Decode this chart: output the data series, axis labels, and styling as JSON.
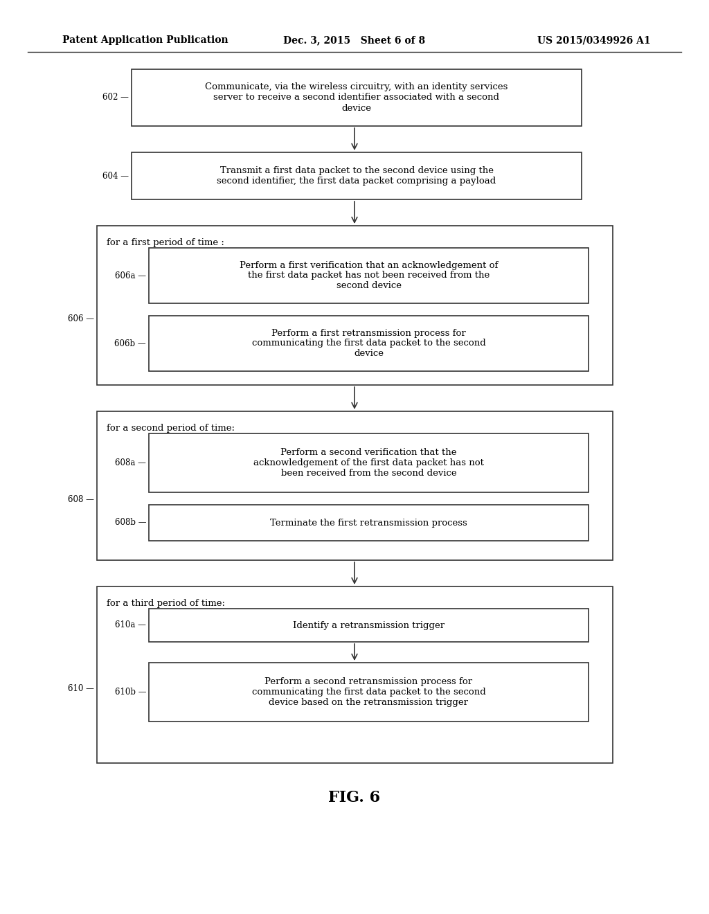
{
  "background_color": "#ffffff",
  "header_left": "Patent Application Publication",
  "header_mid": "Dec. 3, 2015   Sheet 6 of 8",
  "header_right": "US 2015/0349926 A1",
  "figure_label": "FIG. 6"
}
